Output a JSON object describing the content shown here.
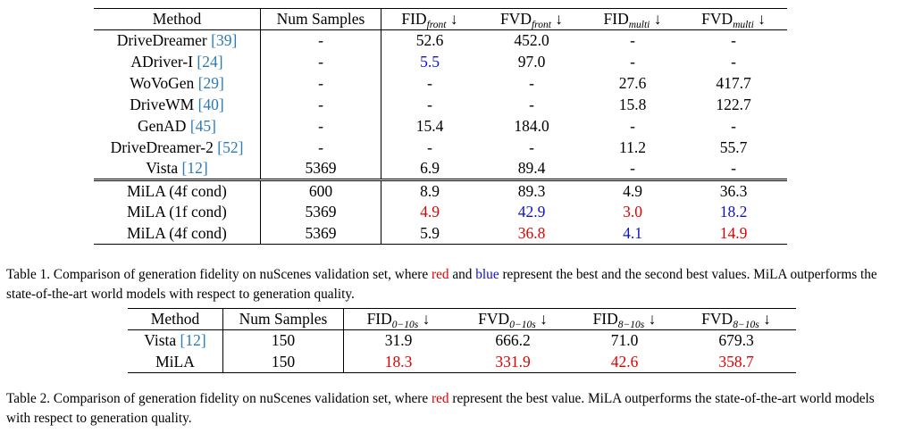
{
  "table1": {
    "headers": {
      "method": "Method",
      "num_samples": "Num Samples",
      "fid_front": "FID",
      "fid_front_sub": "front",
      "fid_front_arrow": " ↓",
      "fvd_front": "FVD",
      "fvd_front_sub": "front",
      "fvd_front_arrow": " ↓",
      "fid_multi": "FID",
      "fid_multi_sub": "multi",
      "fid_multi_arrow": " ↓",
      "fvd_multi": "FVD",
      "fvd_multi_sub": "multi",
      "fvd_multi_arrow": " ↓"
    },
    "rows": [
      {
        "name": "DriveDreamer ",
        "ref": "[39]",
        "samples": "-",
        "fid_front": "52.6",
        "fvd_front": "452.0",
        "fid_multi": "-",
        "fvd_multi": "-"
      },
      {
        "name": "ADriver-I ",
        "ref": "[24]",
        "samples": "-",
        "fid_front": "5.5",
        "fvd_front": "97.0",
        "fid_multi": "-",
        "fvd_multi": "-"
      },
      {
        "name": "WoVoGen ",
        "ref": "[29]",
        "samples": "-",
        "fid_front": "-",
        "fvd_front": "-",
        "fid_multi": "27.6",
        "fvd_multi": "417.7"
      },
      {
        "name": "DriveWM ",
        "ref": "[40]",
        "samples": "-",
        "fid_front": "-",
        "fvd_front": "-",
        "fid_multi": "15.8",
        "fvd_multi": "122.7"
      },
      {
        "name": "GenAD ",
        "ref": "[45]",
        "samples": "-",
        "fid_front": "15.4",
        "fvd_front": "184.0",
        "fid_multi": "-",
        "fvd_multi": "-"
      },
      {
        "name": "DriveDreamer-2 ",
        "ref": "[52]",
        "samples": "-",
        "fid_front": "-",
        "fvd_front": "-",
        "fid_multi": "11.2",
        "fvd_multi": "55.7"
      },
      {
        "name": "Vista ",
        "ref": "[12]",
        "samples": "5369",
        "fid_front": "6.9",
        "fvd_front": "89.4",
        "fid_multi": "-",
        "fvd_multi": "-"
      },
      {
        "name": "MiLA (4f cond)",
        "ref": "",
        "samples": "600",
        "fid_front": "8.9",
        "fvd_front": "89.3",
        "fid_multi": "4.9",
        "fvd_multi": "36.3"
      },
      {
        "name": "MiLA (1f cond)",
        "ref": "",
        "samples": "5369",
        "fid_front": "4.9",
        "fvd_front": "42.9",
        "fid_multi": "3.0",
        "fvd_multi": "18.2"
      },
      {
        "name": "MiLA (4f cond)",
        "ref": "",
        "samples": "5369",
        "fid_front": "5.9",
        "fvd_front": "36.8",
        "fid_multi": "4.1",
        "fvd_multi": "14.9"
      }
    ]
  },
  "caption1": {
    "p1": "Table 1. Comparison of generation fidelity on nuScenes validation set, where ",
    "red": "red",
    "p2": " and ",
    "blue": "blue",
    "p3": " represent the best and the second best values. MiLA outperforms the state-of-the-art world models with respect to generation quality."
  },
  "table2": {
    "headers": {
      "method": "Method",
      "num_samples": "Num Samples",
      "fid_a": "FID",
      "fid_a_sub": "0−10s",
      "fid_a_arrow": " ↓",
      "fvd_a": "FVD",
      "fvd_a_sub": "0−10s",
      "fvd_a_arrow": " ↓",
      "fid_b": "FID",
      "fid_b_sub": "8−10s",
      "fid_b_arrow": " ↓",
      "fvd_b": "FVD",
      "fvd_b_sub": "8−10s",
      "fvd_b_arrow": " ↓"
    },
    "rows": [
      {
        "name": "Vista ",
        "ref": "[12]",
        "samples": "150",
        "fid_a": "31.9",
        "fvd_a": "666.2",
        "fid_b": "71.0",
        "fvd_b": "679.3"
      },
      {
        "name": "MiLA",
        "ref": "",
        "samples": "150",
        "fid_a": "18.3",
        "fvd_a": "331.9",
        "fid_b": "42.6",
        "fvd_b": "358.7"
      }
    ]
  },
  "caption2": {
    "p1": "Table 2. Comparison of generation fidelity on nuScenes validation set, where ",
    "red": "red",
    "p2": " represent the best value. MiLA outperforms the state-of-the-art world models with respect to generation quality."
  },
  "colors": {
    "best": "#e00000",
    "second": "#1010d0",
    "citation": "#2a7ab8"
  }
}
